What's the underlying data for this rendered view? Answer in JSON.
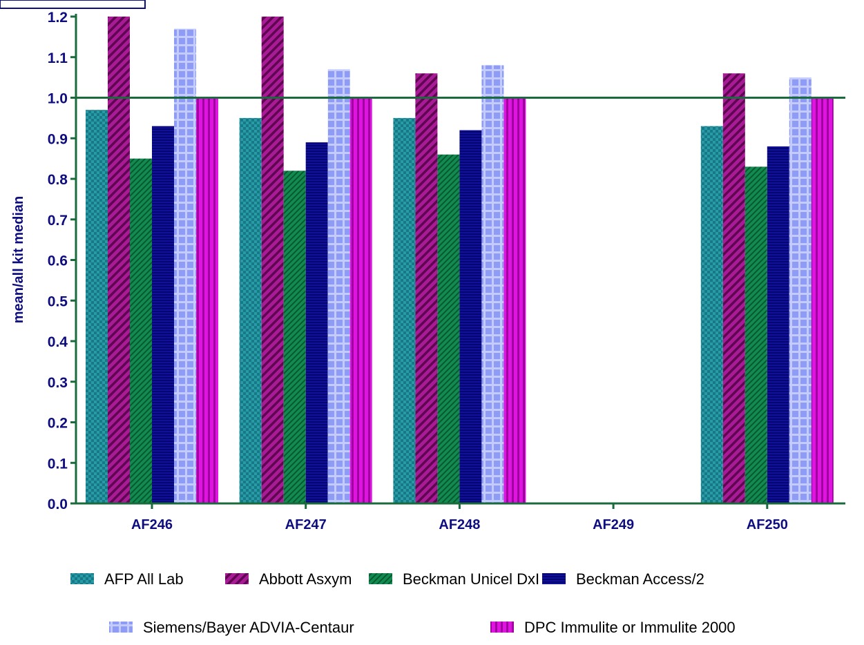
{
  "chart_data": {
    "type": "bar",
    "title": "",
    "xlabel": "",
    "ylabel": "mean/all kit median",
    "ylim": [
      0,
      1.2
    ],
    "yticks": [
      "0.0",
      "0.1",
      "0.2",
      "0.3",
      "0.4",
      "0.5",
      "0.6",
      "0.7",
      "0.8",
      "0.9",
      "1.0",
      "1.1",
      "1.2"
    ],
    "reference_line": 1.0,
    "grid": false,
    "legend_position": "bottom",
    "categories": [
      "AF246",
      "AF247",
      "AF248",
      "AF249",
      "AF250"
    ],
    "series": [
      {
        "name": "AFP All Lab",
        "color": "#1f8a96",
        "pattern": "checker",
        "values": [
          0.97,
          0.95,
          0.95,
          null,
          0.93
        ]
      },
      {
        "name": "Abbott Asxym",
        "color": "#8c0f7a",
        "pattern": "diagonal",
        "values": [
          1.2,
          1.2,
          1.06,
          null,
          1.06
        ]
      },
      {
        "name": "Beckman Unicel DxI",
        "color": "#0c7a45",
        "pattern": "diagonal-fine",
        "values": [
          0.85,
          0.82,
          0.86,
          null,
          0.83
        ]
      },
      {
        "name": "Beckman Access/2",
        "color": "#0a0a8c",
        "pattern": "horizontal",
        "values": [
          0.93,
          0.89,
          0.92,
          null,
          0.88
        ]
      },
      {
        "name": "Siemens/Bayer ADVIA-Centaur",
        "color": "#9aa8ff",
        "pattern": "grid",
        "values": [
          1.17,
          1.07,
          1.08,
          null,
          1.05
        ]
      },
      {
        "name": "DPC Immulite or Immulite 2000",
        "color": "#d20ad2",
        "pattern": "vertical",
        "values": [
          1.0,
          1.0,
          1.0,
          null,
          1.0
        ]
      }
    ]
  },
  "colors": {
    "axis": "#1a6b3c",
    "text": "#0d0d80"
  }
}
